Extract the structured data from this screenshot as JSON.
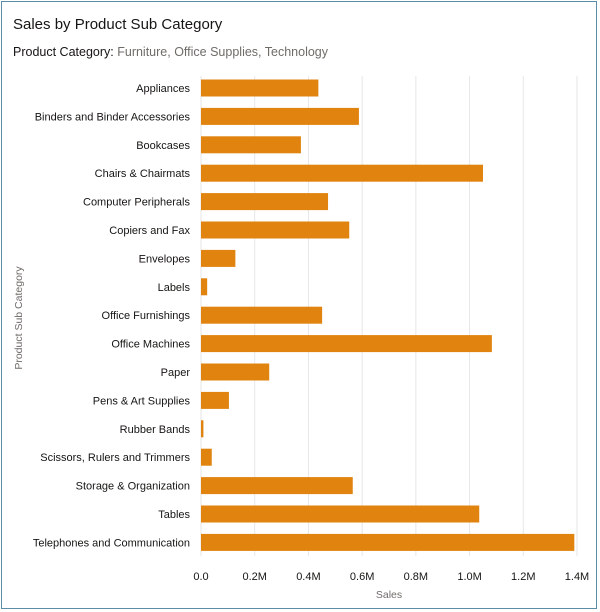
{
  "header": {
    "title": "Sales by Product Sub Category",
    "filter_label": "Product Category:",
    "filter_value": "Furniture, Office Supplies, Technology"
  },
  "colors": {
    "bar": "#e0830f",
    "grid": "#e6e6e6",
    "border": "#5b8ea6"
  },
  "chart_data": {
    "type": "bar",
    "orientation": "horizontal",
    "title": "Sales by Product Sub Category",
    "xlabel": "Sales",
    "ylabel": "Product Sub Category",
    "xlim": [
      0,
      1400000
    ],
    "xticks": [
      0,
      200000,
      400000,
      600000,
      800000,
      1000000,
      1200000,
      1400000
    ],
    "xtick_labels": [
      "0.0",
      "0.2M",
      "0.4M",
      "0.6M",
      "0.8M",
      "1.0M",
      "1.2M",
      "1.4M"
    ],
    "grid": true,
    "categories": [
      "Appliances",
      "Binders and Binder Accessories",
      "Bookcases",
      "Chairs & Chairmats",
      "Computer Peripherals",
      "Copiers and Fax",
      "Envelopes",
      "Labels",
      "Office Furnishings",
      "Office Machines",
      "Paper",
      "Pens & Art Supplies",
      "Rubber Bands",
      "Scissors, Rulers and Trimmers",
      "Storage & Organization",
      "Tables",
      "Telephones and Communication"
    ],
    "values": [
      437000,
      588000,
      372000,
      1050000,
      473000,
      552000,
      128000,
      23000,
      451000,
      1083000,
      254000,
      104000,
      9000,
      40000,
      565000,
      1036000,
      1390000
    ]
  }
}
